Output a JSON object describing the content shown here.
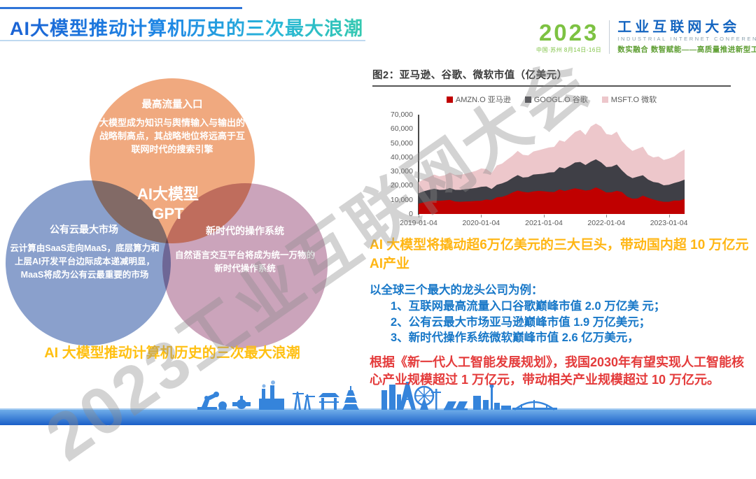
{
  "header": {
    "title": "AI大模型推动计算机历史的三次最大浪潮",
    "logo": {
      "year": "2023",
      "venue": "中国·苏州 8月14日-16日",
      "name_cn": "工业互联网大会",
      "name_en": "INDUSTRIAL INTERNET CONFERENCE",
      "tagline": "数实融合 数智赋能——高质量推进新型工业化"
    }
  },
  "watermark": "2023工业互联网大会",
  "venn": {
    "center": "AI大模型\nGPT",
    "top": {
      "title": "最高流量入口",
      "body": "大模型成为知识与舆情输入与输出的战略制高点，其战略地位将远高于互联网时代的搜索引擎",
      "color": "#F0A97F"
    },
    "left": {
      "title": "公有云最大市场",
      "body": "云计算由SaaS走向MaaS，底层算力和上层AI开发平台边际成本递减明显，MaaS将成为公有云最重要的市场",
      "color": "#8AA0CC"
    },
    "right": {
      "title": "新时代的操作系统",
      "body": "自然语言交互平台将成为统一万物的新时代操作系统",
      "color": "#CBA4BB"
    },
    "caption": "AI 大模型推动计算机历史的三次最大浪潮"
  },
  "chart_data": {
    "type": "area",
    "stacked": true,
    "title": "图2：亚马逊、谷歌、微软市值（亿美元）",
    "unit": "亿美元",
    "xlabel": "",
    "ylabel": "",
    "ylim": [
      0,
      70000
    ],
    "grid": false,
    "legend_position": "top",
    "y_ticks": [
      0,
      10000,
      20000,
      30000,
      40000,
      50000,
      60000,
      70000
    ],
    "y_tick_labels": [
      "0",
      "10,000",
      "20,000",
      "30,000",
      "40,000",
      "50,000",
      "60,000",
      "70,000"
    ],
    "x_ticks": [
      "2019-01-04",
      "2020-01-04",
      "2021-01-04",
      "2022-01-04",
      "2023-01-04"
    ],
    "x_tick_positions": [
      0,
      0.235,
      0.471,
      0.706,
      0.941
    ],
    "series": [
      {
        "code": "AMZN.O",
        "name": "亚马逊",
        "color": "#C00000",
        "values": [
          7300,
          8200,
          8900,
          9500,
          9300,
          9600,
          9900,
          8800,
          8600,
          8800,
          8900,
          9200,
          9300,
          10200,
          9700,
          11800,
          12100,
          13300,
          15200,
          16500,
          15700,
          15200,
          15900,
          16300,
          16000,
          15600,
          15500,
          17300,
          16200,
          17200,
          18100,
          17400,
          16500,
          17000,
          18800,
          17100,
          15200,
          15300,
          16300,
          15500,
          12200,
          10800,
          11000,
          12900,
          11500,
          10200,
          9300,
          8600,
          8600,
          9500,
          9400,
          10600
        ]
      },
      {
        "code": "GOOGL.O",
        "name": "谷歌",
        "color": "#3F3F46",
        "values": [
          7300,
          7800,
          8100,
          8300,
          7700,
          7500,
          8400,
          8200,
          8400,
          8700,
          9000,
          9200,
          9900,
          9200,
          7900,
          8800,
          9500,
          9700,
          10200,
          10900,
          10000,
          10800,
          11900,
          11800,
          12400,
          13700,
          14000,
          15700,
          16000,
          16800,
          18200,
          19300,
          18000,
          19800,
          19700,
          19300,
          17900,
          18000,
          18600,
          15200,
          15000,
          14500,
          15300,
          14400,
          12800,
          12400,
          12700,
          11600,
          12000,
          12300,
          13400,
          13600
        ]
      },
      {
        "code": "MSFT.O",
        "name": "微软",
        "color": "#EDC7CB",
        "values": [
          7900,
          8500,
          9000,
          10000,
          9500,
          10200,
          10900,
          10500,
          10600,
          10900,
          11500,
          12000,
          12900,
          12300,
          11400,
          13600,
          13900,
          15400,
          15600,
          17100,
          16000,
          15300,
          16200,
          16800,
          17500,
          17600,
          17800,
          19000,
          18700,
          20400,
          21500,
          22600,
          21200,
          24800,
          25300,
          25200,
          23300,
          22400,
          23100,
          20700,
          20300,
          19200,
          19700,
          20100,
          17500,
          17300,
          18500,
          17900,
          18500,
          18700,
          20600,
          21300
        ]
      }
    ]
  },
  "right_text": {
    "highlight": "AI 大模型将撬动超6万亿美元的三大巨头，带动国内超 10 万亿元 AI产业",
    "list_header": "以全球三个最大的龙头公司为例：",
    "list_items": [
      "1、互联网最高流量入口谷歌巅峰市值 2.0 万亿美 元；",
      "2、公有云最大市场亚马逊巅峰市值 1.9 万亿美元；",
      "3、新时代操作系统微软巅峰市值 2.6 亿万美元，"
    ],
    "footer": "根据《新一代人工智能发展规划》，我国2030年有望实现人工智能核心产业规模超过 1 万亿元，带动相关产业规模超过 10 万亿元。"
  },
  "colors": {
    "title_gradient_start": "#1B63D4",
    "title_gradient_end": "#35C9B0",
    "logo_green": "#7DC242",
    "logo_blue": "#1565C0",
    "caption_yellow": "#FFC012",
    "highlight_orange": "#FFB614",
    "list_blue": "#1878C8",
    "footer_red": "#E43B3B",
    "skyline_blue": "#3584DB"
  }
}
